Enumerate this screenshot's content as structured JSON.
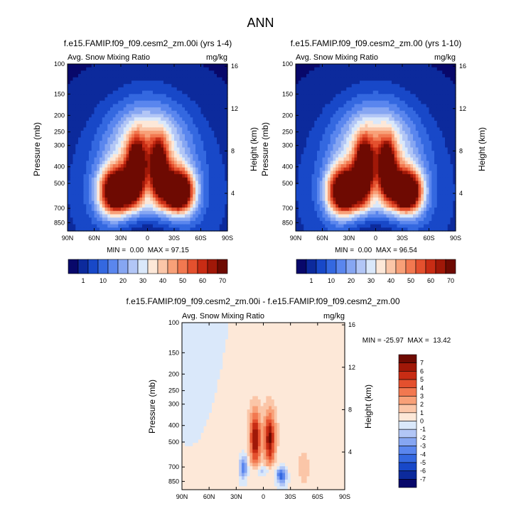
{
  "figure": {
    "title": "ANN"
  },
  "chart_data": [
    {
      "type": "heatmap",
      "title": "f.e15.FAMIP.f09_f09.cesm2_zm.00i (yrs 1-4)",
      "subtitle_left": "Avg. Snow Mixing Ratio",
      "subtitle_right": "mg/kg",
      "xlabel": "",
      "ylabel": "Pressure (mb)",
      "ylabel_right": "Height (km)",
      "xticks": [
        "90N",
        "60N",
        "30N",
        "0",
        "30S",
        "60S",
        "90S"
      ],
      "yticks": [
        "100",
        "150",
        "200",
        "250",
        "300",
        "400",
        "500",
        "700",
        "850"
      ],
      "yticks_right": [
        "16",
        "12",
        "8",
        "4"
      ],
      "stats": "MIN =  0.00  MAX = 97.15",
      "min": 0.0,
      "max": 97.15,
      "colorbar": {
        "labels": [
          "1",
          "10",
          "20",
          "30",
          "40",
          "50",
          "60",
          "70"
        ]
      }
    },
    {
      "type": "heatmap",
      "title": "f.e15.FAMIP.f09_f09.cesm2_zm.00 (yrs 1-10)",
      "subtitle_left": "Avg. Snow Mixing Ratio",
      "subtitle_right": "mg/kg",
      "xlabel": "",
      "ylabel": "Pressure (mb)",
      "ylabel_right": "Height (km)",
      "xticks": [
        "90N",
        "60N",
        "30N",
        "0",
        "30S",
        "60S",
        "90S"
      ],
      "yticks": [
        "100",
        "150",
        "200",
        "250",
        "300",
        "400",
        "500",
        "700",
        "850"
      ],
      "yticks_right": [
        "16",
        "12",
        "8",
        "4"
      ],
      "stats": "MIN =  0.00  MAX = 96.54",
      "min": 0.0,
      "max": 96.54,
      "colorbar": {
        "labels": [
          "1",
          "10",
          "20",
          "30",
          "40",
          "50",
          "60",
          "70"
        ]
      }
    },
    {
      "type": "heatmap",
      "title": "f.e15.FAMIP.f09_f09.cesm2_zm.00i - f.e15.FAMIP.f09_f09.cesm2_zm.00",
      "subtitle_left": "Avg. Snow Mixing Ratio",
      "subtitle_right": "mg/kg",
      "xlabel": "",
      "ylabel": "Pressure (mb)",
      "ylabel_right": "Height (km)",
      "xticks": [
        "90N",
        "60N",
        "30N",
        "0",
        "30S",
        "60S",
        "90S"
      ],
      "yticks": [
        "100",
        "150",
        "200",
        "250",
        "300",
        "400",
        "500",
        "700",
        "850"
      ],
      "yticks_right": [
        "16",
        "12",
        "8",
        "4"
      ],
      "stats": "MIN = -25.97  MAX =  13.42",
      "min": -25.97,
      "max": 13.42,
      "colorbar": {
        "labels": [
          "7",
          "6",
          "5",
          "4",
          "3",
          "2",
          "1",
          "0",
          "-1",
          "-2",
          "-3",
          "-4",
          "-5",
          "-6",
          "-7"
        ]
      }
    }
  ],
  "colors": {
    "seq": [
      "#08086a",
      "#0c2a9c",
      "#1848c8",
      "#3468e0",
      "#5a86ee",
      "#86a6f2",
      "#b2c6f6",
      "#dae8fa",
      "#fde8d8",
      "#fbc6a8",
      "#f8a078",
      "#f27850",
      "#e4502e",
      "#c82c14",
      "#a01808",
      "#6e0a02"
    ],
    "div": [
      "#6e0a02",
      "#a01808",
      "#c82c14",
      "#e4502e",
      "#f27850",
      "#f8a078",
      "#fbc6a8",
      "#fde8d8",
      "#dae8fa",
      "#b2c6f6",
      "#86a6f2",
      "#5a86ee",
      "#3468e0",
      "#1848c8",
      "#0c2a9c",
      "#08086a"
    ]
  }
}
